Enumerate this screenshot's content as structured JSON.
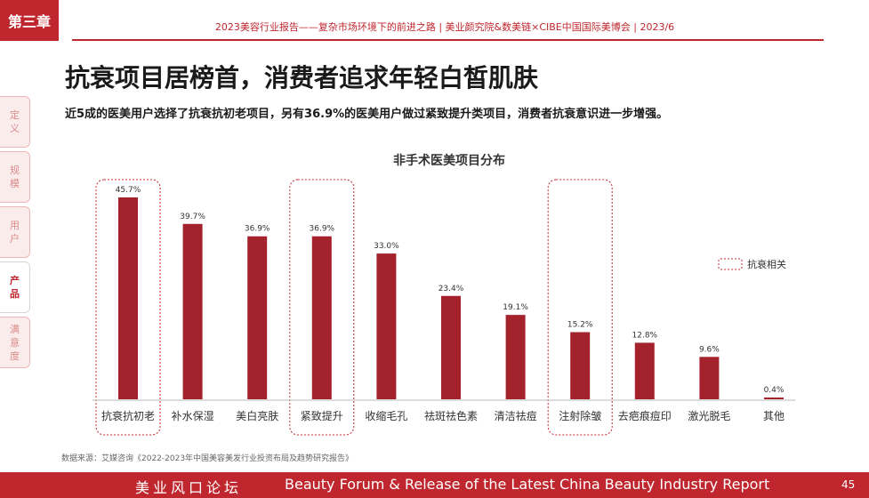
{
  "header": {
    "chapter": "第三章",
    "report_line": "2023美容行业报告——复杂市场环境下的前进之路   |   美业颜究院&数美链×CIBE中国国际美博会   |   2023/6"
  },
  "page": {
    "title": "抗衰项目居榜首，消费者追求年轻白皙肌肤",
    "subtitle": "近5成的医美用户选择了抗衰抗初老项目，另有36.9%的医美用户做过紧致提升类项目，消费者抗衰意识进一步增强。"
  },
  "side_nav": [
    {
      "label": "定义",
      "active": false
    },
    {
      "label": "规模",
      "active": false
    },
    {
      "label": "用户",
      "active": false
    },
    {
      "label": "产品",
      "active": true
    },
    {
      "label": "满意度",
      "active": false
    }
  ],
  "chart_data": {
    "type": "bar",
    "title": "非手术医美项目分布",
    "categories": [
      "抗衰抗初老",
      "补水保湿",
      "美白亮肤",
      "紧致提升",
      "收缩毛孔",
      "祛斑祛色素",
      "清洁祛痘",
      "注射除皱",
      "去疤痕痘印",
      "激光脱毛",
      "其他"
    ],
    "values": [
      45.7,
      39.7,
      36.9,
      36.9,
      33.0,
      23.4,
      19.1,
      15.2,
      12.8,
      9.6,
      0.4
    ],
    "value_labels": [
      "45.7%",
      "39.7%",
      "36.9%",
      "36.9%",
      "33.0%",
      "23.4%",
      "19.1%",
      "15.2%",
      "12.8%",
      "9.6%",
      "0.4%"
    ],
    "highlighted": [
      "抗衰抗初老",
      "紧致提升",
      "注射除皱"
    ],
    "legend": {
      "label": "抗衰相关",
      "position": "right"
    },
    "bar_color": "#a3222b",
    "highlight_color": "#c0262e",
    "ylim": [
      0,
      50
    ],
    "grid": false
  },
  "source": "数据来源：艾媒咨询《2022-2023年中国美容美发行业投资布局及趋势研究报告》",
  "footer": {
    "left": "美业风口论坛",
    "right": "Beauty Forum & Release of the Latest China Beauty Industry Report",
    "page_number": "45"
  }
}
